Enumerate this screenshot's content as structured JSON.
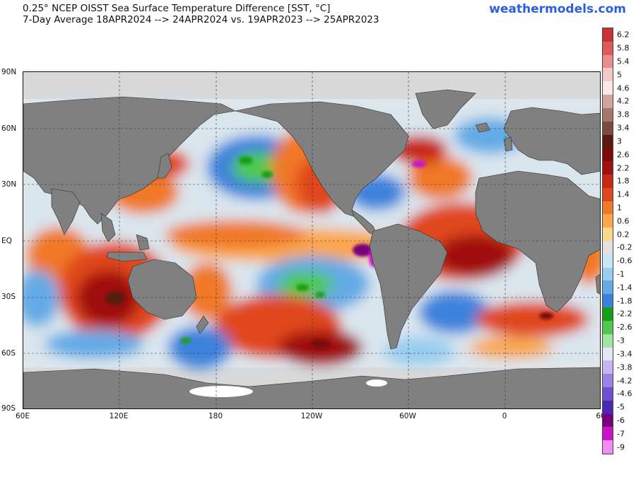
{
  "title": {
    "line1": "0.25° NCEP OISST Sea Surface Temperature Difference [SST, °C]",
    "line2": "7-Day Average 18APR2024 --> 24APR2024  vs. 19APR2023 --> 25APR2023"
  },
  "brand": "weathermodels.com",
  "map": {
    "lat_labels": [
      "90N",
      "60N",
      "30N",
      "EQ",
      "30S",
      "60S",
      "90S"
    ],
    "lon_labels": [
      "60E",
      "120E",
      "180",
      "120W",
      "60W",
      "0",
      "60"
    ],
    "colors": {
      "land": "#808080",
      "ice": "#d8d8d8",
      "ocean_neutral": "#e8e8e8",
      "frame": "#111111"
    }
  },
  "colorbar": {
    "labels": [
      "6.2",
      "5.8",
      "5.4",
      "5",
      "4.6",
      "4.2",
      "3.8",
      "3.4",
      "3",
      "2.6",
      "2.2",
      "1.8",
      "1.4",
      "1",
      "0.6",
      "0.2",
      "-0.2",
      "-0.6",
      "-1",
      "-1.4",
      "-1.8",
      "-2.2",
      "-2.6",
      "-3",
      "-3.4",
      "-3.8",
      "-4.2",
      "-4.6",
      "-5",
      "-6",
      "-7",
      "-9"
    ],
    "colors": [
      "#c83232",
      "#dc5a5a",
      "#eb8c8c",
      "#f5c8c8",
      "#fbe8e4",
      "#cfa59a",
      "#a8776c",
      "#7d4a3f",
      "#5a1a10",
      "#7a0c0c",
      "#a01010",
      "#c82814",
      "#e0461e",
      "#f07828",
      "#fba64a",
      "#fcd88a",
      "#e2e2e2",
      "#c8e6f5",
      "#96cdf0",
      "#64aae6",
      "#3c82dc",
      "#14a014",
      "#50c850",
      "#a0e6a0",
      "#e6e6fa",
      "#c8b4f0",
      "#9b82e6",
      "#6e50d2",
      "#4b28b4",
      "#78007a",
      "#c814c8",
      "#f08cf0"
    ]
  }
}
